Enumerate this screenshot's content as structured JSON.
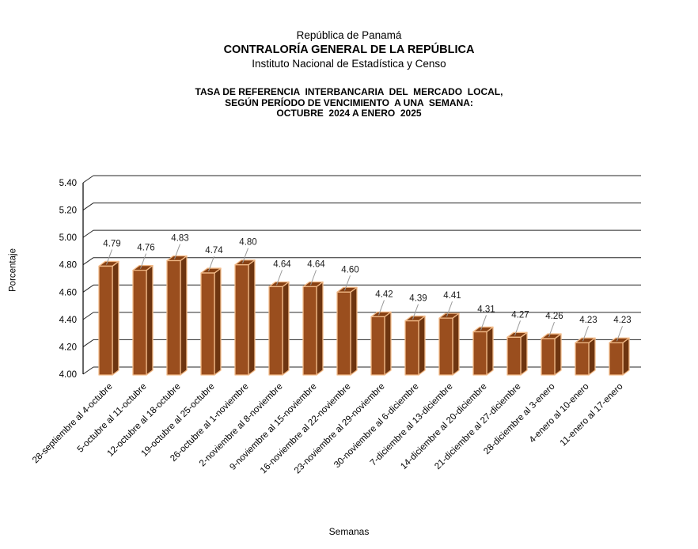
{
  "header": {
    "line1": "República de Panamá",
    "line2": "CONTRALORÍA GENERAL DE LA REPÚBLICA",
    "line3": "Instituto Nacional de Estadística y Censo"
  },
  "chart_data": {
    "type": "bar",
    "style": "3d-column",
    "title_lines": [
      "TASA DE REFERENCIA  INTERBANCARIA  DEL  MERCADO  LOCAL,",
      "SEGÚN PERÍODO DE VENCIMIENTO  A UNA  SEMANA:",
      "OCTUBRE  2024 A ENERO  2025"
    ],
    "xlabel": "Semanas",
    "ylabel": "Porcentaje",
    "ylim": [
      4.0,
      5.4
    ],
    "ytick_step": 0.2,
    "ytick_labels": [
      "4.00",
      "4.20",
      "4.40",
      "4.60",
      "4.80",
      "5.00",
      "5.20",
      "5.40"
    ],
    "grid": true,
    "legend": "none",
    "categories": [
      "28-septiembre al 4-octubre",
      "5-octubre al 11-octubre",
      "12-octubre al 18-octubre",
      "19-octubre al 25-octubre",
      "26-octubre al 1-noviembre",
      "2-noviembre al 8-noviembre",
      "9-noviembre al 15-noviembre",
      "16-noviembre al 22-noviembre",
      "23-noviembre al 29-noviembre",
      "30-noviembre al 6-diciembre",
      "7-diciembre al 13-diciembre",
      "14-diciembre al 20-diciembre",
      "21-diciembre al 27-diciembre",
      "28-diciembre al 3-enero",
      "4-enero al 10-enero",
      "11-enero al 17-enero"
    ],
    "values": [
      4.79,
      4.76,
      4.83,
      4.74,
      4.8,
      4.64,
      4.64,
      4.6,
      4.42,
      4.39,
      4.41,
      4.31,
      4.27,
      4.26,
      4.23,
      4.23
    ],
    "value_labels": [
      "4.79",
      "4.76",
      "4.83",
      "4.74",
      "4.80",
      "4.64",
      "4.64",
      "4.60",
      "4.42",
      "4.39",
      "4.41",
      "4.31",
      "4.27",
      "4.26",
      "4.23",
      "4.23"
    ],
    "colors": {
      "bar_front": "#9A4E1E",
      "bar_side": "#6E3510",
      "bar_top": "#874114",
      "bar_border": "#F2BA88",
      "gridline": "#262626",
      "axis": "#000000",
      "leader_line": "#999999",
      "label_text": "#1a1a1a"
    }
  }
}
